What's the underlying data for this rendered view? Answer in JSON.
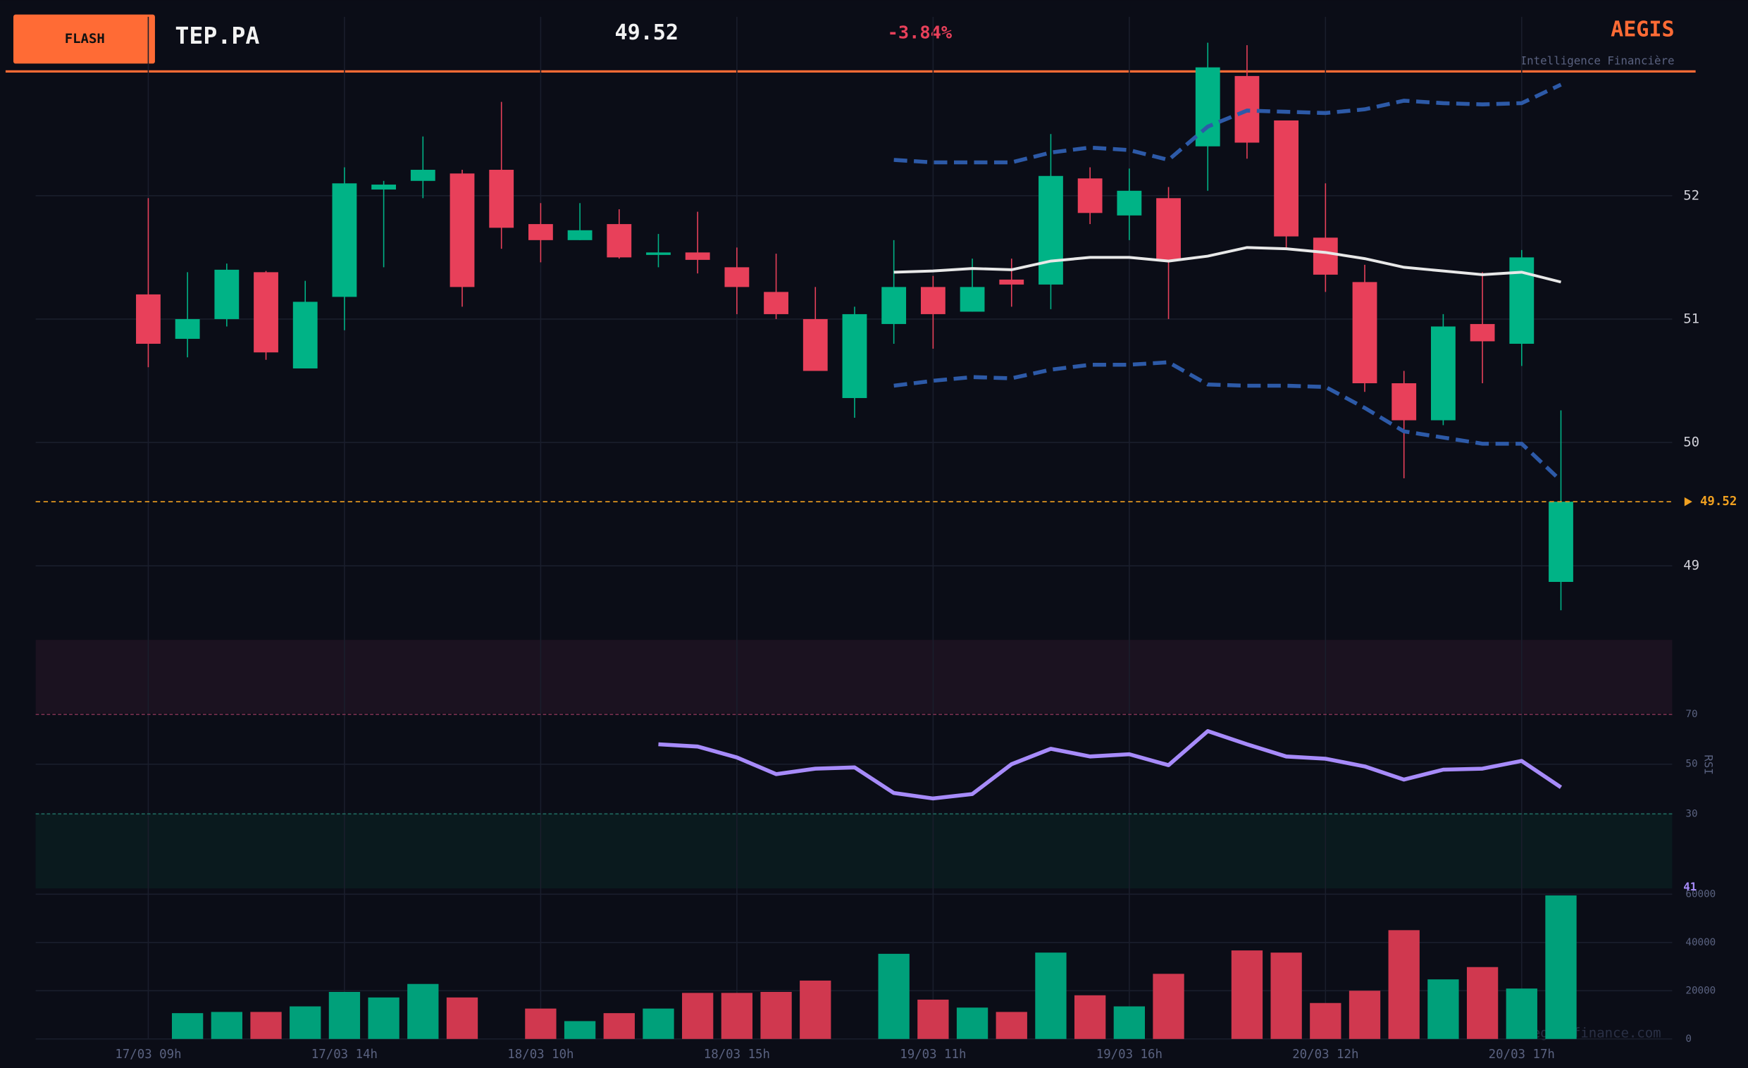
{
  "header": {
    "badge": "FLASH",
    "symbol": "TEP.PA",
    "change": "-3.84%",
    "brand": "AEGIS",
    "tagline": "Intelligence Financière",
    "watermark": "aegis-finance.com"
  },
  "chart_data": [
    {
      "type": "candlestick",
      "last_price": 49.52,
      "categories": [
        "17/03 09h",
        null,
        null,
        null,
        null,
        "17/03 14h",
        null,
        null,
        null,
        null,
        "18/03 10h",
        null,
        null,
        null,
        null,
        "18/03 15h",
        null,
        null,
        null,
        null,
        "19/03 11h",
        null,
        null,
        null,
        null,
        "19/03 16h",
        null,
        null,
        null,
        null,
        "20/03 12h",
        null,
        null,
        null,
        null,
        "20/03 17h",
        null
      ],
      "open": [
        51.2,
        50.84,
        51.0,
        51.38,
        50.6,
        51.18,
        52.05,
        52.12,
        52.18,
        52.21,
        51.77,
        51.64,
        51.77,
        51.52,
        51.54,
        51.42,
        51.22,
        51.0,
        50.36,
        50.96,
        51.26,
        51.06,
        51.32,
        51.28,
        52.14,
        51.84,
        51.98,
        52.4,
        52.97,
        52.61,
        51.66,
        51.3,
        50.48,
        50.18,
        50.96,
        50.8,
        48.87
      ],
      "high": [
        51.98,
        51.38,
        51.45,
        51.39,
        51.31,
        52.23,
        52.12,
        52.48,
        52.21,
        52.76,
        51.94,
        51.94,
        51.89,
        51.69,
        51.87,
        51.58,
        51.53,
        51.26,
        51.1,
        51.64,
        51.35,
        51.49,
        51.49,
        52.5,
        52.23,
        52.22,
        52.07,
        53.24,
        53.22,
        52.61,
        52.1,
        51.44,
        50.58,
        51.04,
        51.38,
        51.56,
        50.26
      ],
      "low": [
        50.61,
        50.69,
        50.94,
        50.67,
        50.6,
        50.91,
        51.42,
        51.98,
        51.1,
        51.57,
        51.46,
        51.64,
        51.49,
        51.42,
        51.37,
        51.04,
        51.0,
        50.58,
        50.2,
        50.8,
        50.76,
        51.06,
        51.1,
        51.08,
        51.77,
        51.64,
        51.0,
        52.04,
        52.3,
        51.56,
        51.22,
        50.41,
        49.71,
        50.14,
        50.48,
        50.62,
        48.64
      ],
      "close": [
        50.8,
        51.0,
        51.4,
        50.73,
        51.14,
        52.1,
        52.09,
        52.21,
        51.26,
        51.74,
        51.64,
        51.72,
        51.5,
        51.54,
        51.48,
        51.26,
        51.04,
        50.58,
        51.04,
        51.26,
        51.04,
        51.26,
        51.28,
        52.16,
        51.86,
        52.04,
        51.48,
        53.04,
        52.43,
        51.67,
        51.36,
        50.48,
        50.18,
        50.94,
        50.82,
        51.5,
        49.52
      ],
      "up_color": "#00b386",
      "down_color": "#e8405a",
      "series": [
        {
          "name": "upper",
          "color": "#2d5aa8",
          "values": [
            null,
            null,
            null,
            null,
            null,
            null,
            null,
            null,
            null,
            null,
            null,
            null,
            null,
            null,
            null,
            null,
            null,
            null,
            null,
            52.29,
            52.27,
            52.27,
            52.27,
            52.35,
            52.39,
            52.37,
            52.29,
            52.56,
            52.69,
            52.68,
            52.67,
            52.7,
            52.77,
            52.75,
            52.74,
            52.75,
            52.9
          ]
        },
        {
          "name": "middle",
          "color": "#e8e8e8",
          "values": [
            null,
            null,
            null,
            null,
            null,
            null,
            null,
            null,
            null,
            null,
            null,
            null,
            null,
            null,
            null,
            null,
            null,
            null,
            null,
            51.38,
            51.39,
            51.41,
            51.4,
            51.47,
            51.5,
            51.5,
            51.47,
            51.51,
            51.58,
            51.57,
            51.54,
            51.49,
            51.42,
            51.39,
            51.36,
            51.38,
            51.3
          ]
        },
        {
          "name": "lower",
          "color": "#2d5aa8",
          "values": [
            null,
            null,
            null,
            null,
            null,
            null,
            null,
            null,
            null,
            null,
            null,
            null,
            null,
            null,
            null,
            null,
            null,
            null,
            null,
            50.46,
            50.5,
            50.53,
            50.52,
            50.59,
            50.63,
            50.63,
            50.65,
            50.47,
            50.46,
            50.46,
            50.45,
            50.28,
            50.09,
            50.04,
            49.99,
            49.99,
            49.69
          ]
        }
      ],
      "ylim": [
        48.4,
        53.45
      ],
      "yticks": [
        49,
        50,
        51,
        52
      ],
      "grid": true
    },
    {
      "type": "line",
      "y_label": "RSI",
      "color": "#a78bfa",
      "last_label": "41",
      "values": [
        null,
        null,
        null,
        null,
        null,
        null,
        null,
        null,
        null,
        null,
        null,
        null,
        null,
        58.0,
        57.1,
        52.7,
        46.0,
        48.2,
        48.7,
        38.4,
        36.2,
        38.0,
        50.0,
        56.2,
        53.1,
        54.0,
        49.6,
        63.3,
        58.0,
        53.1,
        52.2,
        49.1,
        43.8,
        47.8,
        48.2,
        51.3,
        40.7
      ],
      "ylim": [
        0,
        100
      ],
      "yticks": [
        30,
        50,
        70
      ]
    },
    {
      "type": "bar",
      "up_color": "#00a07a",
      "down_color": "#d0384f",
      "values": [
        null,
        10700,
        11200,
        11200,
        13500,
        19500,
        17200,
        22800,
        17200,
        null,
        12600,
        7400,
        10700,
        12600,
        19100,
        19100,
        19500,
        24200,
        null,
        35300,
        16300,
        13000,
        11200,
        35800,
        18100,
        13500,
        27000,
        null,
        36700,
        35800,
        14900,
        20000,
        45100,
        24700,
        29800,
        20900,
        59500
      ],
      "ylim": [
        0,
        61000
      ],
      "yticks": [
        0,
        20000,
        40000,
        60000
      ]
    }
  ]
}
